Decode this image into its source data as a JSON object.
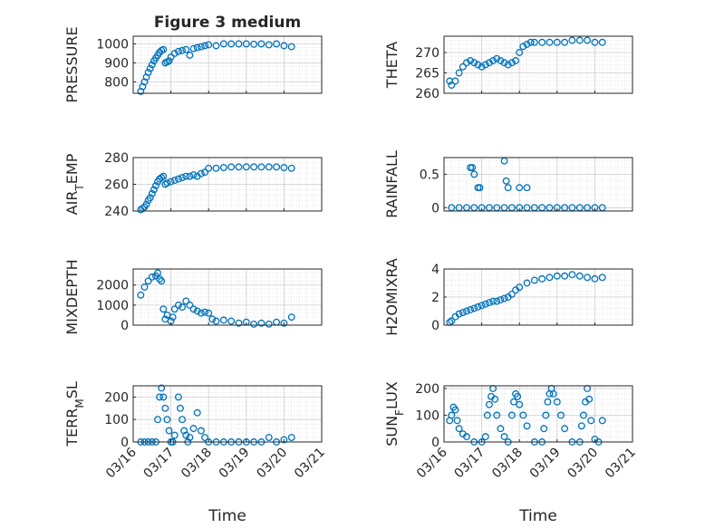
{
  "figure": {
    "title": "Figure 3 medium",
    "x_dates": [
      "03/16",
      "03/17",
      "03/18",
      "03/19",
      "03/20",
      "03/21"
    ],
    "xlabel": "Time",
    "marker_color": "#0072BD",
    "marker": "open-circle"
  },
  "chart_data": [
    {
      "type": "scatter",
      "name": "pressure",
      "ylabel": "PRESSURE",
      "ylim": [
        740,
        1040
      ],
      "yticks": [
        800,
        900,
        1000
      ],
      "x": [
        0.2,
        0.25,
        0.3,
        0.35,
        0.4,
        0.45,
        0.5,
        0.55,
        0.6,
        0.65,
        0.7,
        0.75,
        0.8,
        0.85,
        0.9,
        0.95,
        1.0,
        1.1,
        1.2,
        1.3,
        1.4,
        1.5,
        1.6,
        1.7,
        1.8,
        1.9,
        2.0,
        2.2,
        2.4,
        2.6,
        2.8,
        3.0,
        3.2,
        3.4,
        3.6,
        3.8,
        4.0,
        4.2
      ],
      "y": [
        750,
        775,
        800,
        825,
        850,
        870,
        890,
        910,
        925,
        940,
        955,
        965,
        970,
        900,
        905,
        910,
        930,
        950,
        960,
        965,
        970,
        940,
        975,
        980,
        985,
        990,
        995,
        990,
        1000,
        1000,
        1000,
        1000,
        998,
        1000,
        995,
        1000,
        990,
        985
      ]
    },
    {
      "type": "scatter",
      "name": "theta",
      "ylabel": "THETA",
      "ylim": [
        260,
        274
      ],
      "yticks": [
        260,
        265,
        270
      ],
      "x": [
        0.15,
        0.2,
        0.3,
        0.4,
        0.5,
        0.6,
        0.7,
        0.8,
        0.9,
        1.0,
        1.1,
        1.2,
        1.3,
        1.4,
        1.5,
        1.6,
        1.7,
        1.8,
        1.9,
        2.0,
        2.1,
        2.2,
        2.3,
        2.4,
        2.6,
        2.8,
        3.0,
        3.2,
        3.4,
        3.6,
        3.8,
        4.0,
        4.2
      ],
      "y": [
        263,
        262,
        263,
        265,
        266.5,
        267.5,
        268,
        267.5,
        267,
        266.5,
        267,
        267.5,
        268,
        268.5,
        268,
        267.5,
        267,
        267.5,
        268,
        270,
        271.5,
        272,
        272.5,
        272.5,
        272.5,
        272.5,
        272.5,
        272.5,
        273,
        273,
        273,
        272.5,
        272.5
      ]
    },
    {
      "type": "scatter",
      "name": "air_temp",
      "ylabel": "AIR",
      "ylabel_sub": "T",
      "ylabel_rest": "EMP",
      "ylim": [
        240,
        280
      ],
      "yticks": [
        240,
        260,
        280
      ],
      "x": [
        0.2,
        0.25,
        0.3,
        0.35,
        0.4,
        0.45,
        0.5,
        0.55,
        0.6,
        0.65,
        0.7,
        0.75,
        0.8,
        0.85,
        0.9,
        1.0,
        1.1,
        1.2,
        1.3,
        1.4,
        1.5,
        1.6,
        1.7,
        1.8,
        1.9,
        2.0,
        2.2,
        2.4,
        2.6,
        2.8,
        3.0,
        3.2,
        3.4,
        3.6,
        3.8,
        4.0,
        4.2
      ],
      "y": [
        241,
        242,
        243,
        245,
        248,
        250,
        253,
        256,
        259,
        262,
        264,
        265,
        266,
        260,
        261,
        262,
        263,
        264,
        265,
        266,
        266,
        267,
        266,
        268,
        269,
        272,
        272,
        272.5,
        273,
        273,
        273,
        273,
        273,
        273,
        273,
        272.5,
        272
      ]
    },
    {
      "type": "scatter",
      "name": "rainfall",
      "ylabel": "RAINFALL",
      "ylim": [
        -0.05,
        0.75
      ],
      "yticks": [
        0,
        0.5
      ],
      "x": [
        0.2,
        0.4,
        0.6,
        0.8,
        1.0,
        1.2,
        1.4,
        1.6,
        1.8,
        2.0,
        2.2,
        2.4,
        2.6,
        2.8,
        3.0,
        3.2,
        3.4,
        3.6,
        3.8,
        4.0,
        4.2,
        0.7,
        0.75,
        0.8,
        0.9,
        0.95,
        1.6,
        1.65,
        1.7,
        2.0,
        2.2
      ],
      "y": [
        0,
        0,
        0,
        0,
        0,
        0,
        0,
        0,
        0,
        0,
        0,
        0,
        0,
        0,
        0,
        0,
        0,
        0,
        0,
        0,
        0,
        0.6,
        0.6,
        0.5,
        0.3,
        0.3,
        0.7,
        0.4,
        0.3,
        0.3,
        0.3
      ]
    },
    {
      "type": "scatter",
      "name": "mixdepth",
      "ylabel": "MIXDEPTH",
      "ylim": [
        0,
        2800
      ],
      "yticks": [
        0,
        1000,
        2000
      ],
      "x": [
        0.2,
        0.3,
        0.4,
        0.5,
        0.6,
        0.65,
        0.7,
        0.75,
        0.8,
        0.85,
        0.9,
        1.0,
        1.05,
        1.1,
        1.2,
        1.3,
        1.4,
        1.5,
        1.6,
        1.7,
        1.8,
        1.9,
        2.0,
        2.1,
        2.2,
        2.4,
        2.6,
        2.8,
        3.0,
        3.2,
        3.4,
        3.6,
        3.8,
        4.0,
        4.2
      ],
      "y": [
        1500,
        1900,
        2200,
        2400,
        2450,
        2600,
        2300,
        2200,
        800,
        300,
        500,
        200,
        400,
        800,
        1000,
        900,
        1200,
        1000,
        800,
        700,
        600,
        650,
        600,
        300,
        200,
        250,
        200,
        100,
        150,
        50,
        100,
        50,
        150,
        100,
        400
      ]
    },
    {
      "type": "scatter",
      "name": "h2omixra",
      "ylabel": "H2OMIXRA",
      "ylim": [
        0,
        4
      ],
      "yticks": [
        0,
        2,
        4
      ],
      "x": [
        0.15,
        0.2,
        0.3,
        0.4,
        0.5,
        0.6,
        0.7,
        0.8,
        0.9,
        1.0,
        1.1,
        1.2,
        1.3,
        1.4,
        1.5,
        1.6,
        1.7,
        1.8,
        1.9,
        2.0,
        2.2,
        2.4,
        2.6,
        2.8,
        3.0,
        3.2,
        3.4,
        3.6,
        3.8,
        4.0,
        4.2
      ],
      "y": [
        0.2,
        0.3,
        0.6,
        0.8,
        0.9,
        1.0,
        1.1,
        1.2,
        1.3,
        1.4,
        1.5,
        1.6,
        1.7,
        1.7,
        1.8,
        1.9,
        2.0,
        2.2,
        2.5,
        2.7,
        3.0,
        3.2,
        3.3,
        3.4,
        3.5,
        3.5,
        3.6,
        3.5,
        3.4,
        3.3,
        3.4
      ]
    },
    {
      "type": "scatter",
      "name": "terr_msl",
      "ylabel": "TERR",
      "ylabel_sub": "M",
      "ylabel_rest": "SL",
      "ylim": [
        0,
        250
      ],
      "yticks": [
        0,
        100,
        200
      ],
      "x": [
        0.2,
        0.3,
        0.4,
        0.5,
        0.6,
        0.65,
        0.7,
        0.75,
        0.8,
        0.85,
        0.9,
        0.95,
        1.0,
        1.05,
        1.1,
        1.2,
        1.25,
        1.3,
        1.35,
        1.4,
        1.45,
        1.5,
        1.6,
        1.7,
        1.8,
        1.9,
        2.0,
        2.2,
        2.4,
        2.6,
        2.8,
        3.0,
        3.2,
        3.4,
        3.6,
        3.8,
        4.0,
        4.2
      ],
      "y": [
        0,
        0,
        0,
        0,
        0,
        100,
        200,
        240,
        200,
        150,
        100,
        50,
        0,
        0,
        30,
        200,
        150,
        100,
        50,
        30,
        0,
        20,
        60,
        130,
        50,
        20,
        0,
        0,
        0,
        0,
        0,
        0,
        0,
        0,
        20,
        0,
        10,
        20
      ]
    },
    {
      "type": "scatter",
      "name": "sun_flux",
      "ylabel": "SUN",
      "ylabel_sub": "F",
      "ylabel_rest": "LUX",
      "ylim": [
        0,
        210
      ],
      "yticks": [
        0,
        100,
        200
      ],
      "x": [
        0.15,
        0.2,
        0.25,
        0.3,
        0.35,
        0.4,
        0.5,
        0.6,
        0.8,
        1.0,
        1.1,
        1.15,
        1.2,
        1.25,
        1.3,
        1.35,
        1.4,
        1.5,
        1.6,
        1.7,
        1.8,
        1.85,
        1.9,
        1.95,
        2.0,
        2.1,
        2.2,
        2.4,
        2.6,
        2.65,
        2.7,
        2.75,
        2.8,
        2.85,
        2.9,
        3.0,
        3.1,
        3.2,
        3.4,
        3.6,
        3.65,
        3.7,
        3.75,
        3.8,
        3.85,
        3.9,
        4.0,
        4.1,
        4.2
      ],
      "y": [
        80,
        100,
        130,
        120,
        80,
        50,
        30,
        20,
        0,
        0,
        20,
        100,
        140,
        170,
        200,
        160,
        100,
        50,
        20,
        0,
        100,
        150,
        180,
        170,
        140,
        100,
        60,
        0,
        0,
        50,
        100,
        150,
        180,
        200,
        180,
        150,
        100,
        50,
        0,
        0,
        60,
        100,
        150,
        200,
        160,
        80,
        10,
        0,
        80
      ]
    }
  ]
}
